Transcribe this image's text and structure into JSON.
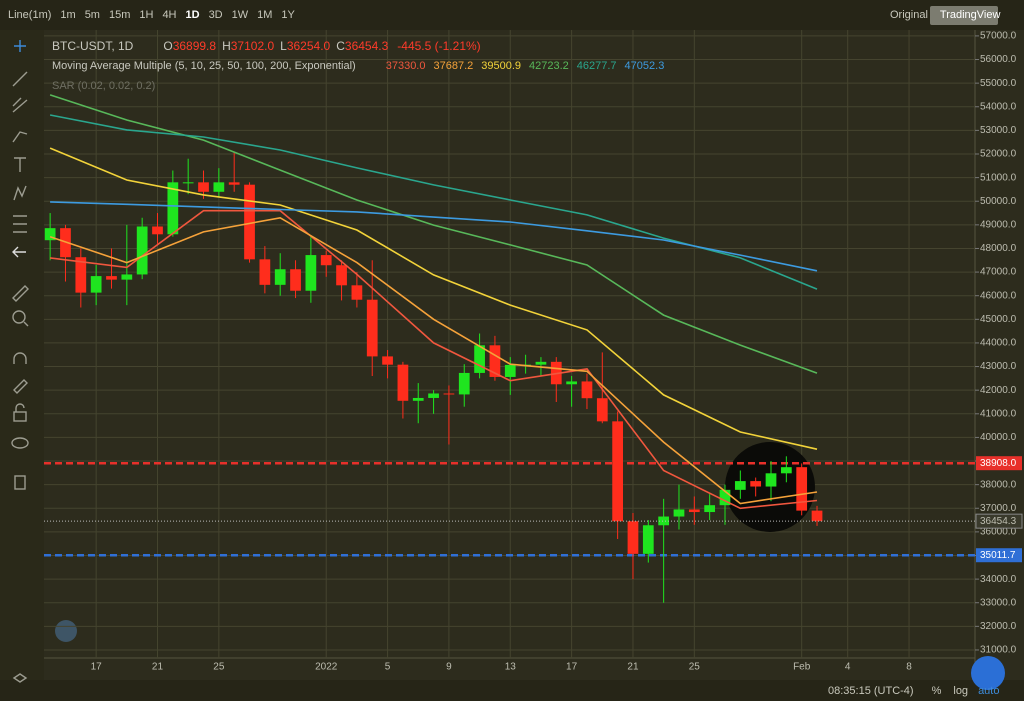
{
  "toolbar": {
    "chart_style": "Line(1m)",
    "intervals": [
      "1m",
      "5m",
      "15m",
      "1H",
      "4H",
      "1D",
      "3D",
      "1W",
      "1M",
      "1Y"
    ],
    "active_interval": 5,
    "views": [
      "Original",
      "TradingView"
    ]
  },
  "legend": {
    "symbol": "BTC-USDT, 1D",
    "fields": [
      {
        "key": "O",
        "value": "36899.8"
      },
      {
        "key": "H",
        "value": "37102.0"
      },
      {
        "key": "L",
        "value": "36254.0"
      },
      {
        "key": "C",
        "value": "36454.3"
      }
    ],
    "change": "-445.5 (-1.21%)",
    "indicator": "Moving Average Multiple (5, 10, 25, 50, 100, 200, Exponential)",
    "sar": "SAR (0.02, 0.02, 0.2)"
  },
  "status_bar": {
    "time": "08:35:15 (UTC-4)",
    "options": [
      "%",
      "log",
      "auto"
    ]
  },
  "chart_data": {
    "type": "candlestick",
    "up_color": "#1fe51f",
    "down_color": "#ff2d1c",
    "open": [
      48350,
      48860,
      47630,
      46130,
      46830,
      46680,
      46900,
      48930,
      48600,
      50800,
      50800,
      50400,
      50800,
      50700,
      47540,
      46460,
      47120,
      46210,
      47720,
      47290,
      46440,
      45830,
      43430,
      43080,
      41550,
      41670,
      41860,
      41820,
      42730,
      43900,
      42560,
      43070,
      43080,
      43200,
      42250,
      42370,
      41660,
      40680,
      36450,
      35070,
      36280,
      36650,
      36950,
      36840,
      37130,
      37780,
      38150,
      37920,
      38480,
      38740,
      36899.8
    ],
    "high": [
      49500,
      49000,
      48000,
      47300,
      48000,
      49000,
      49300,
      49500,
      51300,
      51800,
      51300,
      51400,
      52100,
      50800,
      48100,
      47800,
      47500,
      48500,
      47900,
      47500,
      47000,
      47500,
      43700,
      43200,
      42300,
      42000,
      42200,
      43100,
      44400,
      44300,
      43400,
      43500,
      43400,
      43400,
      42600,
      42700,
      43600,
      41100,
      36800,
      36500,
      37400,
      38000,
      37500,
      37600,
      38000,
      38600,
      38300,
      39000,
      39200,
      38900,
      37102
    ],
    "low": [
      47500,
      46600,
      45500,
      45600,
      46300,
      45600,
      46700,
      48200,
      48500,
      50300,
      50100,
      50200,
      50400,
      47400,
      46100,
      46000,
      45900,
      45700,
      46800,
      45800,
      45500,
      42600,
      42500,
      40800,
      40600,
      41000,
      39700,
      41300,
      42500,
      42400,
      41800,
      42700,
      42600,
      41500,
      41300,
      41200,
      40600,
      35700,
      34000,
      34700,
      33000,
      36100,
      36300,
      36500,
      36300,
      37400,
      37500,
      37300,
      38100,
      36700,
      36254
    ],
    "close": [
      48860,
      47630,
      46130,
      46830,
      46680,
      46900,
      48930,
      48600,
      50800,
      50800,
      50400,
      50800,
      50700,
      47540,
      46460,
      47120,
      46210,
      47720,
      47290,
      46440,
      45830,
      43430,
      43080,
      41550,
      41670,
      41860,
      41820,
      42730,
      43900,
      42560,
      43070,
      43080,
      43200,
      42250,
      42370,
      41660,
      40680,
      36450,
      35070,
      36280,
      36650,
      36950,
      36840,
      37130,
      37780,
      38150,
      37920,
      38480,
      38740,
      36899.8,
      36454.3
    ],
    "series": [
      {
        "name": "5",
        "color": "#f0573e",
        "x": [
          0,
          5,
          10,
          15,
          20,
          25,
          30,
          35,
          40,
          45,
          50
        ],
        "values": [
          47600,
          47200,
          49600,
          49600,
          46900,
          44000,
          42400,
          42900,
          38600,
          37000,
          37330
        ],
        "value_labels": [
          null,
          null,
          null,
          null,
          null,
          null,
          null,
          null,
          null,
          null,
          "37330.0"
        ]
      },
      {
        "name": "10",
        "color": "#f5a23a",
        "x": [
          0,
          5,
          10,
          15,
          20,
          25,
          30,
          35,
          40,
          45,
          50
        ],
        "values": [
          48500,
          47400,
          48700,
          49300,
          47400,
          45000,
          43100,
          42800,
          39800,
          37200,
          37687.2
        ],
        "value_labels": [
          null,
          null,
          null,
          null,
          null,
          null,
          null,
          null,
          null,
          null,
          "37687.2"
        ]
      },
      {
        "name": "25",
        "color": "#f2d33a",
        "x": [
          0,
          5,
          10,
          15,
          20,
          25,
          30,
          35,
          40,
          45,
          50
        ],
        "values": [
          52250,
          50900,
          50270,
          49840,
          48780,
          46880,
          45600,
          44550,
          41800,
          40230,
          39500.9
        ],
        "value_labels": [
          null,
          null,
          null,
          null,
          null,
          null,
          null,
          null,
          null,
          null,
          "39500.9"
        ]
      },
      {
        "name": "50",
        "color": "#58b85a",
        "x": [
          0,
          5,
          10,
          15,
          20,
          25,
          30,
          35,
          40,
          45,
          50
        ],
        "values": [
          54500,
          53440,
          52590,
          51320,
          50050,
          48990,
          48150,
          47300,
          45180,
          43910,
          42723.2
        ]
      },
      {
        "name": "100",
        "color": "#2aa68e",
        "x": [
          0,
          5,
          10,
          15,
          20,
          25,
          30,
          35,
          40,
          45,
          50
        ],
        "values": [
          53650,
          53020,
          52720,
          52170,
          51410,
          50690,
          50050,
          49420,
          48440,
          47600,
          46277.7
        ]
      },
      {
        "name": "200",
        "color": "#3d9be0",
        "x": [
          0,
          5,
          10,
          15,
          20,
          25,
          30,
          35,
          40,
          45,
          50
        ],
        "values": [
          49970,
          49870,
          49760,
          49650,
          49550,
          49330,
          49120,
          48750,
          48360,
          47720,
          47052.3
        ]
      }
    ],
    "levels": [
      {
        "value": 38908,
        "label": "38908.0",
        "color": "#e8302a"
      },
      {
        "value": 35011.7,
        "label": "35011.7",
        "color": "#2f6fd6"
      }
    ],
    "xlim": [
      -0.4,
      60.3
    ],
    "xticks": [
      {
        "value": 3,
        "label": "17"
      },
      {
        "value": 7,
        "label": "21"
      },
      {
        "value": 11,
        "label": "25"
      },
      {
        "value": 18,
        "label": "2022"
      },
      {
        "value": 22,
        "label": "5"
      },
      {
        "value": 26,
        "label": "9"
      },
      {
        "value": 30,
        "label": "13"
      },
      {
        "value": 34,
        "label": "17"
      },
      {
        "value": 38,
        "label": "21"
      },
      {
        "value": 42,
        "label": "25"
      },
      {
        "value": 49,
        "label": "Feb"
      },
      {
        "value": 52,
        "label": "4"
      },
      {
        "value": 56,
        "label": "8"
      }
    ],
    "ylim": [
      30660,
      57250
    ],
    "yticks": [
      {
        "value": 31000,
        "label": "31000.0"
      },
      {
        "value": 32000,
        "label": "32000.0"
      },
      {
        "value": 33000,
        "label": "33000.0"
      },
      {
        "value": 34000,
        "label": "34000.0"
      },
      {
        "value": 35000,
        "label": "35000.0"
      },
      {
        "value": 36000,
        "label": "36000.0"
      },
      {
        "value": 37000,
        "label": "37000.0"
      },
      {
        "value": 38000,
        "label": "38000.0"
      },
      {
        "value": 39000,
        "label": "39000.0"
      },
      {
        "value": 40000,
        "label": "40000.0"
      },
      {
        "value": 41000,
        "label": "41000.0"
      },
      {
        "value": 42000,
        "label": "42000.0"
      },
      {
        "value": 43000,
        "label": "43000.0"
      },
      {
        "value": 44000,
        "label": "44000.0"
      },
      {
        "value": 45000,
        "label": "45000.0"
      },
      {
        "value": 46000,
        "label": "46000.0"
      },
      {
        "value": 47000,
        "label": "47000.0"
      },
      {
        "value": 48000,
        "label": "48000.0"
      },
      {
        "value": 49000,
        "label": "49000.0"
      },
      {
        "value": 50000,
        "label": "50000.0"
      },
      {
        "value": 51000,
        "label": "51000.0"
      },
      {
        "value": 52000,
        "label": "52000.0"
      },
      {
        "value": 53000,
        "label": "53000.0"
      },
      {
        "value": 54000,
        "label": "54000.0"
      },
      {
        "value": 55000,
        "label": "55000.0"
      },
      {
        "value": 56000,
        "label": "56000.0"
      },
      {
        "value": 57000,
        "label": "57000.0"
      }
    ],
    "grid": true
  }
}
